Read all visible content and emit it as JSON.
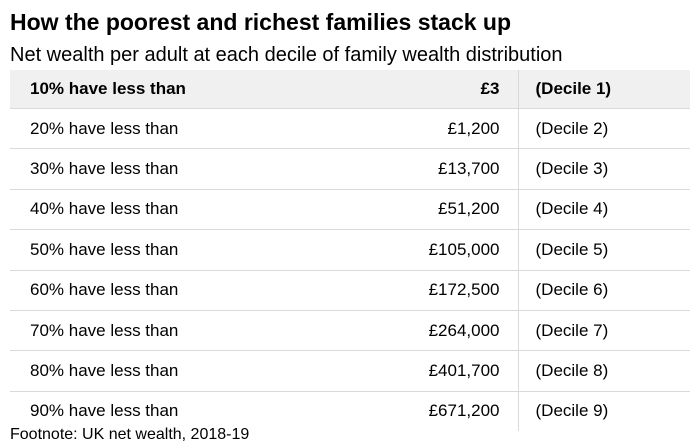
{
  "chart_data": {
    "type": "table",
    "title": "How the poorest and richest families stack up",
    "subtitle": "Net wealth per adult at each decile of family wealth distribution",
    "rows": [
      {
        "label": "10% have less than",
        "value": "£3",
        "decile": "(Decile 1)"
      },
      {
        "label": "20% have less than",
        "value": "£1,200",
        "decile": "(Decile 2)"
      },
      {
        "label": "30% have less than",
        "value": "£13,700",
        "decile": "(Decile 3)"
      },
      {
        "label": "40% have less than",
        "value": "£51,200",
        "decile": "(Decile 4)"
      },
      {
        "label": "50% have less than",
        "value": "£105,000",
        "decile": "(Decile 5)"
      },
      {
        "label": "60% have less than",
        "value": "£172,500",
        "decile": "(Decile 6)"
      },
      {
        "label": "70% have less than",
        "value": "£264,000",
        "decile": "(Decile 7)"
      },
      {
        "label": "80% have less than",
        "value": "£401,700",
        "decile": "(Decile 8)"
      },
      {
        "label": "90% have less than",
        "value": "£671,200",
        "decile": "(Decile 9)"
      }
    ],
    "footnote": "Footnote: UK net wealth, 2018-19"
  }
}
